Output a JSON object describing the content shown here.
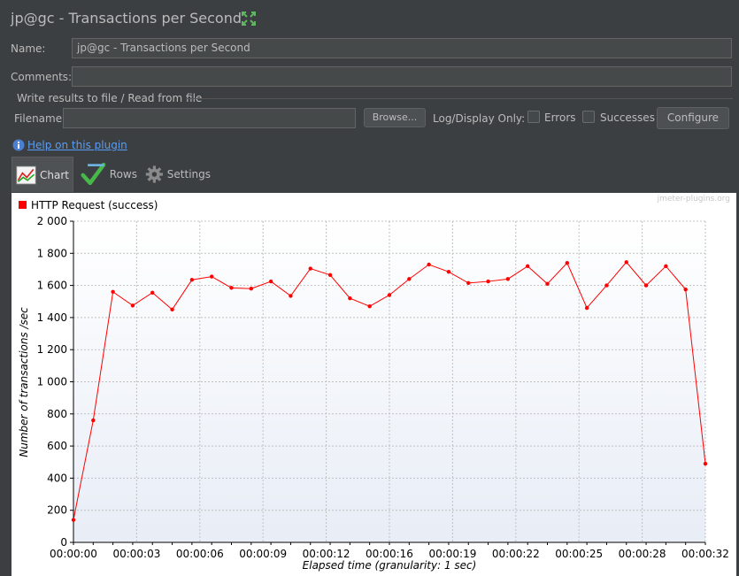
{
  "header": {
    "title": "jp@gc - Transactions per Second"
  },
  "form": {
    "name_label": "Name:",
    "name_value": "jp@gc - Transactions per Second",
    "comments_label": "Comments:",
    "comments_value": "",
    "group_title": "Write results to file / Read from file",
    "filename_label": "Filename",
    "filename_value": "",
    "browse_label": "Browse...",
    "log_display_label": "Log/Display Only:",
    "errors_label": "Errors",
    "successes_label": "Successes",
    "configure_label": "Configure"
  },
  "help": {
    "label": "Help on this plugin"
  },
  "tabs": [
    {
      "label": "Chart",
      "icon": "chart-icon"
    },
    {
      "label": "Rows",
      "icon": "checkmark-icon"
    },
    {
      "label": "Settings",
      "icon": "gear-icon"
    }
  ],
  "watermark": "jmeter-plugins.org",
  "colors": {
    "series": "#ff0000",
    "background": "#3c3f41"
  },
  "chart_data": {
    "type": "line",
    "xlabel": "Elapsed time (granularity: 1 sec)",
    "ylabel": "Number of transactions /sec",
    "ylim": [
      0,
      2000
    ],
    "yticks": [
      "0",
      "200",
      "400",
      "600",
      "800",
      "1 000",
      "1 200",
      "1 400",
      "1 600",
      "1 800",
      "2 000"
    ],
    "xticks": [
      "00:00:00",
      "00:00:03",
      "00:00:06",
      "00:00:09",
      "00:00:12",
      "00:00:16",
      "00:00:19",
      "00:00:22",
      "00:00:25",
      "00:00:28",
      "00:00:32"
    ],
    "grid": true,
    "legend_position": "top-left",
    "series": [
      {
        "name": "HTTP Request (success)",
        "color": "#ff0000",
        "x": [
          0,
          1,
          2,
          3,
          4,
          5,
          6,
          7,
          8,
          9,
          10,
          11,
          12,
          13,
          14,
          15,
          16,
          17,
          18,
          19,
          20,
          21,
          22,
          23,
          24,
          25,
          26,
          27,
          28,
          29,
          30,
          31,
          32
        ],
        "values": [
          140,
          760,
          1560,
          1475,
          1555,
          1450,
          1635,
          1655,
          1585,
          1580,
          1625,
          1535,
          1705,
          1665,
          1520,
          1470,
          1540,
          1640,
          1730,
          1685,
          1615,
          1625,
          1640,
          1720,
          1610,
          1740,
          1460,
          1600,
          1745,
          1600,
          1720,
          1575,
          490
        ]
      }
    ]
  }
}
